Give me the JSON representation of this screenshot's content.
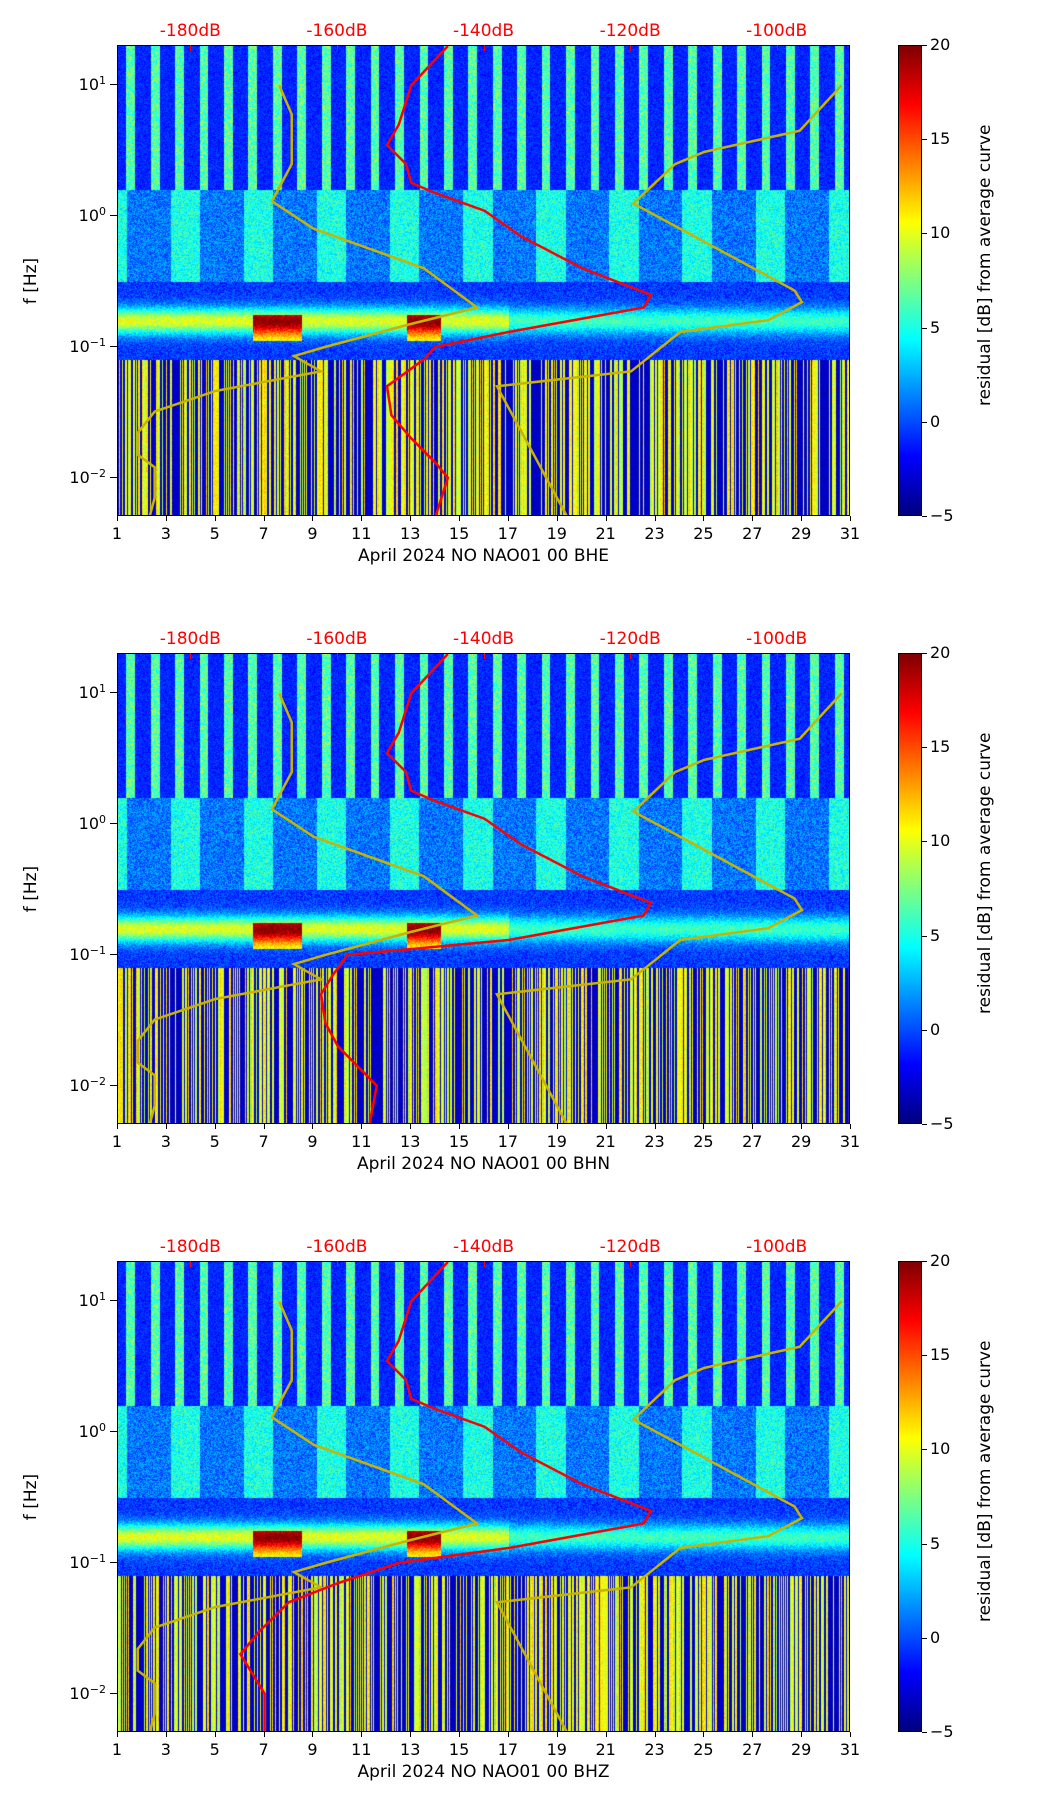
{
  "chart_data": [
    {
      "type": "heatmap",
      "xlabel": "April 2024 NO NAO01 00 BHE",
      "ylabel": "f [Hz]",
      "colorbar_label": "residual [dB] from average curve",
      "xlim": [
        1,
        31
      ],
      "ylim": [
        0.005,
        20
      ],
      "yscale": "log",
      "clim": [
        -5,
        20
      ],
      "top_axis_lim": [
        -190,
        -90
      ],
      "red_curve": {
        "f": [
          20,
          10,
          5,
          3.5,
          2.5,
          1.8,
          1.5,
          1.1,
          0.7,
          0.4,
          0.25,
          0.2,
          0.13,
          0.1,
          0.08,
          0.05,
          0.03,
          0.02,
          0.013,
          0.01,
          0.005
        ],
        "db": [
          -145,
          -150,
          -151.7,
          -153.3,
          -150.7,
          -150,
          -146.7,
          -140,
          -135,
          -126.7,
          -117.3,
          -118.3,
          -136.7,
          -146.7,
          -148.3,
          -153.3,
          -152.7,
          -150,
          -146.7,
          -145,
          -146.7
        ]
      }
    },
    {
      "type": "heatmap",
      "xlabel": "April 2024 NO NAO01 00 BHN",
      "ylabel": "f [Hz]",
      "colorbar_label": "residual [dB] from average curve",
      "xlim": [
        1,
        31
      ],
      "ylim": [
        0.005,
        20
      ],
      "yscale": "log",
      "clim": [
        -5,
        20
      ],
      "top_axis_lim": [
        -190,
        -90
      ],
      "red_curve": {
        "f": [
          20,
          10,
          5,
          3.5,
          2.5,
          1.8,
          1.5,
          1.1,
          0.7,
          0.4,
          0.25,
          0.2,
          0.13,
          0.1,
          0.07,
          0.05,
          0.03,
          0.02,
          0.013,
          0.01,
          0.005
        ],
        "db": [
          -145,
          -150,
          -151.7,
          -153.3,
          -150.7,
          -150,
          -146.7,
          -140,
          -135,
          -126.7,
          -117.3,
          -118.3,
          -136.7,
          -158.7,
          -160.7,
          -162.3,
          -161.7,
          -160,
          -156.7,
          -154.7,
          -155.7
        ]
      }
    },
    {
      "type": "heatmap",
      "xlabel": "April 2024 NO NAO01 00 BHZ",
      "ylabel": "f [Hz]",
      "colorbar_label": "residual [dB] from average curve",
      "xlim": [
        1,
        31
      ],
      "ylim": [
        0.005,
        20
      ],
      "yscale": "log",
      "clim": [
        -5,
        20
      ],
      "top_axis_lim": [
        -190,
        -90
      ],
      "red_curve": {
        "f": [
          20,
          10,
          5,
          3.5,
          2.5,
          1.8,
          1.5,
          1.1,
          0.7,
          0.4,
          0.25,
          0.2,
          0.13,
          0.1,
          0.07,
          0.05,
          0.03,
          0.02,
          0.01,
          0.005
        ],
        "db": [
          -145,
          -150,
          -151.7,
          -153.3,
          -150.7,
          -150,
          -146.7,
          -140,
          -135,
          -126.7,
          -117.3,
          -118.3,
          -136.7,
          -151.7,
          -160,
          -166.7,
          -170.7,
          -173.3,
          -170,
          -170
        ]
      }
    }
  ],
  "shared": {
    "x_ticks": [
      "1",
      "3",
      "5",
      "7",
      "9",
      "11",
      "13",
      "15",
      "17",
      "19",
      "21",
      "23",
      "25",
      "27",
      "29",
      "31"
    ],
    "y_ticks": [
      {
        "base": "10",
        "exp": "1",
        "value": 10
      },
      {
        "base": "10",
        "exp": "0",
        "value": 1
      },
      {
        "base": "10",
        "exp": "−1",
        "value": 0.1
      },
      {
        "base": "10",
        "exp": "−2",
        "value": 0.01
      }
    ],
    "top_ticks": [
      {
        "label": "-180dB",
        "db": -180
      },
      {
        "label": "-160dB",
        "db": -160
      },
      {
        "label": "-140dB",
        "db": -140
      },
      {
        "label": "-120dB",
        "db": -120
      },
      {
        "label": "-100dB",
        "db": -100
      }
    ],
    "cbar_ticks": [
      "20",
      "15",
      "10",
      "5",
      "0",
      "−5"
    ],
    "low_noise_model": {
      "f": [
        10,
        6,
        2.5,
        1.3,
        0.8,
        0.4,
        0.2,
        0.15,
        0.1,
        0.085,
        0.065,
        0.046,
        0.032,
        0.022,
        0.015,
        0.012,
        0.007,
        0.005
      ],
      "db": [
        -168,
        -166.3,
        -166.3,
        -169,
        -163.3,
        -148.3,
        -141,
        -150,
        -161.7,
        -166,
        -162.3,
        -176.7,
        -185,
        -187.3,
        -187.3,
        -185,
        -185,
        -185.7
      ]
    },
    "high_noise_model": {
      "f": [
        10,
        4.5,
        3.1,
        2.5,
        1.25,
        0.27,
        0.22,
        0.16,
        0.13,
        0.065,
        0.05,
        0.005
      ],
      "db": [
        -91.3,
        -97,
        -110,
        -114,
        -119.7,
        -97.7,
        -96.7,
        -101.3,
        -113.3,
        -120,
        -138.3,
        -128.7
      ]
    },
    "colors": {
      "red_curve": "#ff0000",
      "noise_model": "#c8b400"
    }
  }
}
